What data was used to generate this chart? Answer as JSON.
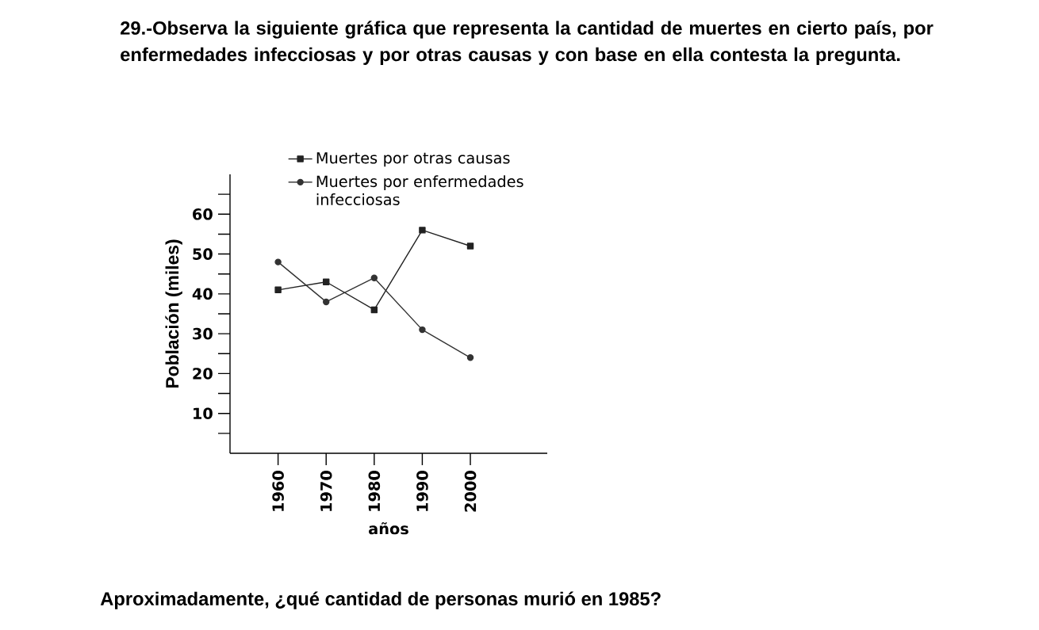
{
  "chart_data": {
    "type": "line",
    "title": "29.-Observa la siguiente gráfica que representa la cantidad de muertes en cierto país, por enfermedades infecciosas y por otras causas y con base en ella contesta la pregunta.",
    "xlabel": "años",
    "ylabel": "Población (miles)",
    "x": [
      1960,
      1970,
      1980,
      1990,
      2000
    ],
    "series": [
      {
        "name": "Muertes por otras causas",
        "color": "#222222",
        "marker": "square",
        "values": [
          41,
          43,
          36,
          56,
          52
        ]
      },
      {
        "name": "Muertes por enfermedades infecciosas",
        "color": "#333333",
        "marker": "circle",
        "values": [
          48,
          38,
          44,
          31,
          24
        ]
      }
    ],
    "xlim": [
      1950,
      2016
    ],
    "ylim": [
      0,
      70
    ],
    "xticks": [
      1960,
      1970,
      1980,
      1990,
      2000
    ],
    "yticks": [
      {
        "value": 5,
        "label": null
      },
      10,
      {
        "value": 15,
        "label": null
      },
      20,
      {
        "value": 25,
        "label": null
      },
      30,
      {
        "value": 35,
        "label": null
      },
      40,
      {
        "value": 45,
        "label": null
      },
      50,
      {
        "value": 55,
        "label": null
      },
      60,
      {
        "value": 65,
        "label": null
      }
    ],
    "legend": "top right",
    "grid": false,
    "line_style": "solid",
    "annotations": [
      "Aproximadamente, ¿qué cantidad de personas murió en 1985?"
    ]
  }
}
